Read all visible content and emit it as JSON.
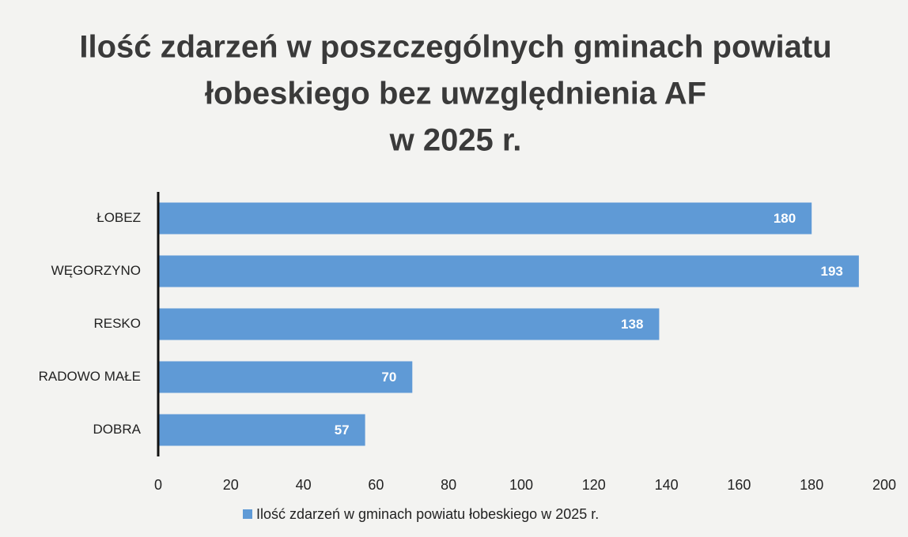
{
  "chart_data": {
    "type": "bar",
    "orientation": "horizontal",
    "title": [
      "Ilość zdarzeń w poszczególnych gminach powiatu",
      "łobeskiego bez uwzględnienia AF",
      "w 2025 r."
    ],
    "categories": [
      "ŁOBEZ",
      "WĘGORZYNO",
      "RESKO",
      "RADOWO MAŁE",
      "DOBRA"
    ],
    "series": [
      {
        "name": "Ilość zdarzeń w gminach powiatu łobeskiego w 2025 r.",
        "color": "#5f9ad6",
        "values": [
          180,
          193,
          138,
          70,
          57
        ]
      }
    ],
    "xlim": [
      0,
      200
    ],
    "xticks": [
      0,
      20,
      40,
      60,
      80,
      100,
      120,
      140,
      160,
      180,
      200
    ],
    "grid": false,
    "legend": "bottom"
  }
}
